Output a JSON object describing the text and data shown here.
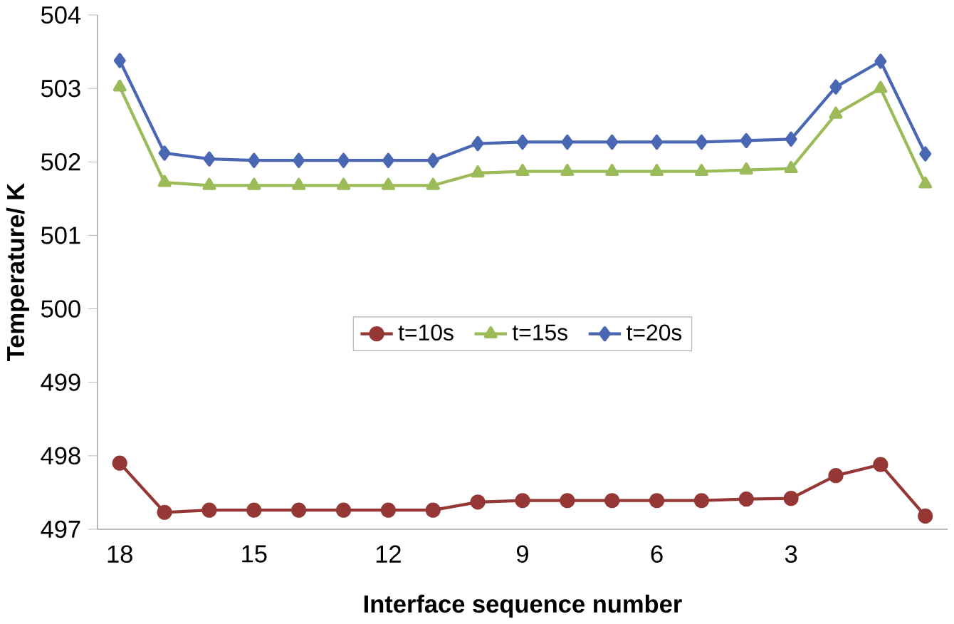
{
  "chart_data": {
    "type": "line",
    "xlabel": "Interface sequence number",
    "ylabel": "Temperature/ K",
    "categories": [
      "18",
      null,
      null,
      "15",
      null,
      null,
      "12",
      null,
      null,
      "9",
      null,
      null,
      "6",
      null,
      null,
      "3",
      null,
      null,
      null
    ],
    "series": [
      {
        "name": "t=10s",
        "color": "#953735",
        "marker": "circle",
        "values": [
          497.9,
          497.23,
          497.26,
          497.26,
          497.26,
          497.26,
          497.26,
          497.26,
          497.37,
          497.39,
          497.39,
          497.39,
          497.39,
          497.39,
          497.41,
          497.42,
          497.73,
          497.88,
          497.18
        ]
      },
      {
        "name": "t=15s",
        "color": "#9bbb59",
        "marker": "triangle",
        "values": [
          503.02,
          501.72,
          501.68,
          501.68,
          501.68,
          501.68,
          501.68,
          501.68,
          501.85,
          501.87,
          501.87,
          501.87,
          501.87,
          501.87,
          501.89,
          501.91,
          502.65,
          503.0,
          501.7
        ]
      },
      {
        "name": "t=20s",
        "color": "#4a67b4",
        "marker": "diamond",
        "values": [
          503.38,
          502.12,
          502.04,
          502.02,
          502.02,
          502.02,
          502.02,
          502.02,
          502.25,
          502.27,
          502.27,
          502.27,
          502.27,
          502.27,
          502.29,
          502.31,
          503.02,
          503.37,
          502.11
        ]
      }
    ],
    "ylim": [
      497,
      504
    ],
    "yticks": [
      497,
      498,
      499,
      500,
      501,
      502,
      503,
      504
    ],
    "grid": false,
    "legend": "center",
    "line_style": "solid"
  }
}
